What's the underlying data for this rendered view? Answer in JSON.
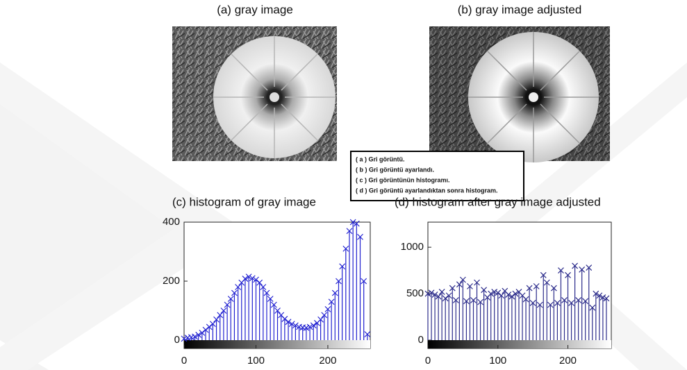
{
  "images": [
    {
      "title": "(a) gray image"
    },
    {
      "title": "(b) gray image adjusted"
    }
  ],
  "caption": {
    "lines": [
      "( a ) Gri görüntü.",
      "( b ) Gri görüntü ayarlandı.",
      "( c ) Gri görüntünün histogramı.",
      "( d ) Gri görüntü ayarlandıktan sonra histogram."
    ]
  },
  "chart_data": [
    {
      "type": "stem",
      "title": "(c) histogram of gray image",
      "color": "#1f1fd0",
      "x": [
        0,
        5,
        10,
        15,
        20,
        25,
        30,
        35,
        40,
        45,
        50,
        55,
        60,
        65,
        70,
        75,
        80,
        85,
        90,
        95,
        100,
        105,
        110,
        115,
        120,
        125,
        130,
        135,
        140,
        145,
        150,
        155,
        160,
        165,
        170,
        175,
        180,
        185,
        190,
        195,
        200,
        205,
        210,
        215,
        220,
        225,
        230,
        235,
        240,
        245,
        250,
        255
      ],
      "values": [
        5,
        8,
        10,
        12,
        18,
        25,
        35,
        45,
        55,
        70,
        85,
        100,
        120,
        140,
        160,
        180,
        195,
        208,
        215,
        210,
        205,
        195,
        180,
        160,
        140,
        120,
        100,
        85,
        72,
        62,
        55,
        50,
        45,
        43,
        42,
        45,
        50,
        58,
        70,
        85,
        105,
        130,
        160,
        200,
        250,
        310,
        370,
        400,
        395,
        350,
        200,
        20
      ],
      "xlim": [
        0,
        259
      ],
      "xticks": [
        0,
        100,
        200
      ],
      "ylim": [
        0,
        400
      ],
      "yticks": [
        0,
        200,
        400
      ]
    },
    {
      "type": "stem",
      "title": "(d) histogram after gray image adjusted",
      "color": "#2a2a8a",
      "x": [
        0,
        5,
        10,
        15,
        20,
        25,
        30,
        35,
        40,
        45,
        50,
        55,
        60,
        65,
        70,
        75,
        80,
        85,
        90,
        95,
        100,
        105,
        110,
        115,
        120,
        125,
        130,
        135,
        140,
        145,
        150,
        155,
        160,
        165,
        170,
        175,
        180,
        185,
        190,
        195,
        200,
        205,
        210,
        215,
        220,
        225,
        230,
        235,
        240,
        245,
        250,
        255
      ],
      "values": [
        500,
        510,
        490,
        470,
        520,
        450,
        480,
        560,
        430,
        600,
        650,
        420,
        580,
        430,
        620,
        410,
        540,
        460,
        500,
        520,
        510,
        480,
        530,
        490,
        470,
        500,
        520,
        480,
        440,
        560,
        400,
        580,
        380,
        700,
        620,
        380,
        560,
        400,
        750,
        430,
        700,
        400,
        800,
        430,
        760,
        420,
        780,
        350,
        500,
        480,
        460,
        450
      ],
      "xlim": [
        0,
        262
      ],
      "xticks": [
        0,
        100,
        200
      ],
      "ylim": [
        0,
        1270
      ],
      "yticks": [
        0,
        500,
        1000
      ]
    }
  ]
}
